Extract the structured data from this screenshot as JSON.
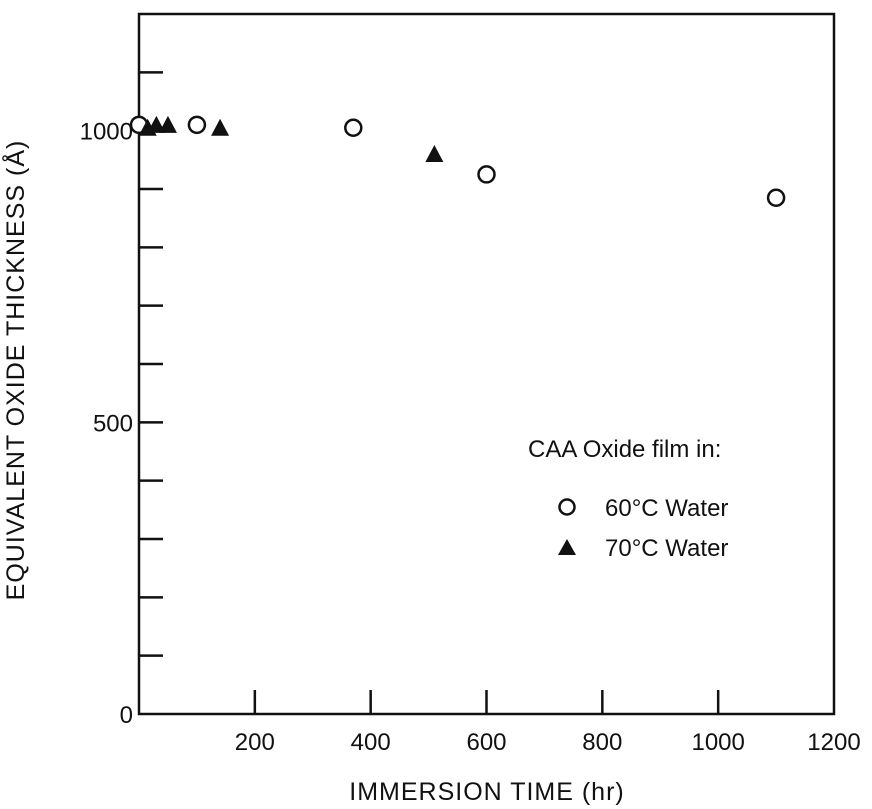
{
  "chart_data": {
    "type": "scatter",
    "title": "",
    "xlabel": "IMMERSION TIME (hr)",
    "ylabel": "EQUIVALENT OXIDE THICKNESS (Å)",
    "xlim": [
      0,
      1200
    ],
    "ylim": [
      0,
      1200
    ],
    "x_ticks": [
      0,
      200,
      400,
      600,
      800,
      1000,
      1200
    ],
    "x_tick_labels": [
      "",
      "200",
      "400",
      "600",
      "800",
      "1000",
      "1200"
    ],
    "y_ticks": [
      0,
      100,
      200,
      300,
      400,
      500,
      600,
      700,
      800,
      900,
      1000,
      1100
    ],
    "y_tick_labels": [
      "0",
      "",
      "",
      "",
      "",
      "500",
      "",
      "",
      "",
      "",
      "1000",
      ""
    ],
    "grid": false,
    "legend": {
      "title": "CAA Oxide film in:",
      "placement": "center-right"
    },
    "series": [
      {
        "name": "60°C Water",
        "marker": "open-circle",
        "color": "#111111",
        "x": [
          0,
          100,
          370,
          600,
          1100
        ],
        "y": [
          1010,
          1010,
          1005,
          925,
          885
        ]
      },
      {
        "name": "70°C Water",
        "marker": "filled-triangle",
        "color": "#111111",
        "x": [
          15,
          30,
          50,
          140,
          510
        ],
        "y": [
          1005,
          1010,
          1010,
          1005,
          960
        ]
      }
    ]
  }
}
